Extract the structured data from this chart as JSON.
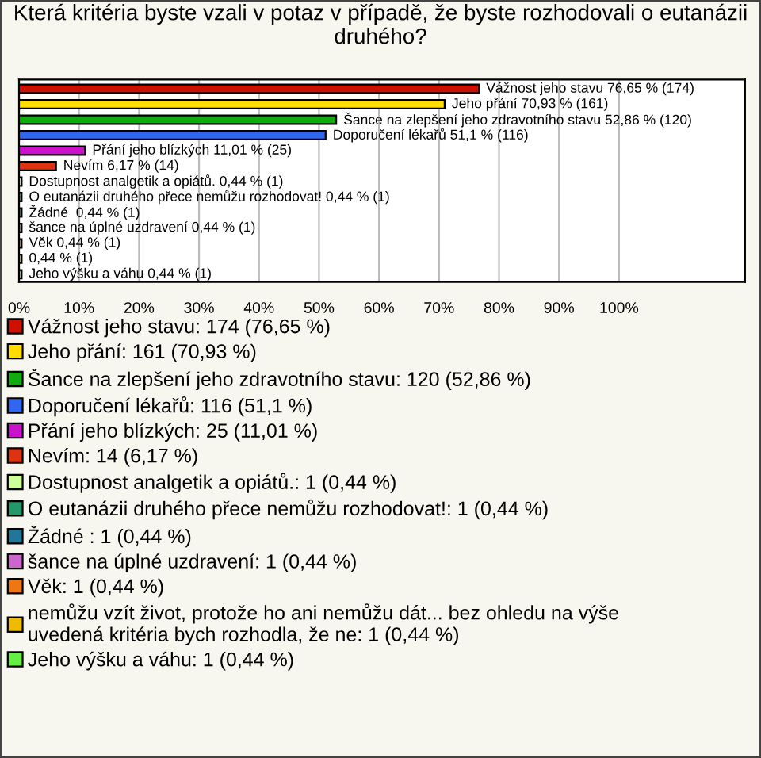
{
  "chart_data": {
    "type": "bar",
    "orientation": "horizontal",
    "title": "Která kritéria byste vzali v potaz v případě, že byste rozhodovali o eutanázii druhého?",
    "categories": [
      null,
      null,
      null,
      null,
      null,
      null,
      null,
      null,
      null,
      null,
      null,
      null,
      null
    ],
    "series": [
      {
        "name": "Vážnost jeho stavu: 174 (76,65 %)",
        "color": "#cc1100",
        "values": [
          76.65,
          null,
          null,
          null,
          null,
          null,
          null,
          null,
          null,
          null,
          null,
          null,
          null
        ]
      },
      {
        "name": "Jeho přání: 161 (70,93 %)",
        "color": "#ffdd00",
        "values": [
          null,
          70.93,
          null,
          null,
          null,
          null,
          null,
          null,
          null,
          null,
          null,
          null,
          null
        ]
      },
      {
        "name": "Šance na zlepšení jeho zdravotního stavu: 120 (52,86 %)",
        "color": "#11aa11",
        "values": [
          null,
          null,
          52.86,
          null,
          null,
          null,
          null,
          null,
          null,
          null,
          null,
          null,
          null
        ]
      },
      {
        "name": "Doporučení lékařů: 116 (51,1 %)",
        "color": "#3366ee",
        "values": [
          null,
          null,
          null,
          51.1,
          null,
          null,
          null,
          null,
          null,
          null,
          null,
          null,
          null
        ]
      },
      {
        "name": "Přání jeho blízkých: 25 (11,01 %)",
        "color": "#cc11cc",
        "values": [
          null,
          null,
          null,
          null,
          11.01,
          null,
          null,
          null,
          null,
          null,
          null,
          null,
          null
        ]
      },
      {
        "name": "Nevím: 14 (6,17 %)",
        "color": "#dd3311",
        "values": [
          null,
          null,
          null,
          null,
          null,
          6.17,
          null,
          null,
          null,
          null,
          null,
          null,
          null
        ]
      },
      {
        "name": "Dostupnost analgetik a opiátů.: 1 (0,44 %)",
        "color": "#ccff99",
        "values": [
          null,
          null,
          null,
          null,
          null,
          null,
          0.44,
          null,
          null,
          null,
          null,
          null,
          null
        ]
      },
      {
        "name": "O eutanázii druhého přece nemůžu rozhodovat!: 1 (0,44 %)",
        "color": "#229966",
        "values": [
          null,
          null,
          null,
          null,
          null,
          null,
          null,
          0.44,
          null,
          null,
          null,
          null,
          null
        ]
      },
      {
        "name": "Žádné : 1 (0,44 %)",
        "color": "#227799",
        "values": [
          null,
          null,
          null,
          null,
          null,
          null,
          null,
          null,
          0.44,
          null,
          null,
          null,
          null
        ]
      },
      {
        "name": "šance na úplné uzdravení: 1 (0,44 %)",
        "color": "#cc66cc",
        "values": [
          null,
          null,
          null,
          null,
          null,
          null,
          null,
          null,
          null,
          0.44,
          null,
          null,
          null
        ]
      },
      {
        "name": "Věk: 1 (0,44 %)",
        "color": "#ee7711",
        "values": [
          null,
          null,
          null,
          null,
          null,
          null,
          null,
          null,
          null,
          null,
          0.44,
          null,
          null
        ]
      },
      {
        "name": "nemůžu vzít život, protože ho ani nemůžu dát... bez ohledu na výše uvedená kritéria bych rozhodla, že ne: 1 (0,44 %)",
        "color": "#eebb00",
        "values": [
          null,
          null,
          null,
          null,
          null,
          null,
          null,
          null,
          null,
          null,
          null,
          0.44,
          null
        ]
      },
      {
        "name": "Jeho výšku a váhu: 1 (0,44 %)",
        "color": "#66ee44",
        "values": [
          null,
          null,
          null,
          null,
          null,
          null,
          null,
          null,
          null,
          null,
          null,
          null,
          0.44
        ]
      }
    ],
    "value_labels": [
      "Vážnost jeho stavu 76,65 % (174)",
      "Jeho přání 70,93 % (161)",
      "Šance na zlepšení jeho zdravotního stavu 52,86 % (120)",
      "Doporučení lékařů 51,1 % (116)",
      "Přání jeho blízkých 11,01 % (25)",
      "Nevím 6,17 % (14)",
      "Dostupnost analgetik a opiátů. 0,44 % (1)",
      "O eutanázii druhého přece nemůžu rozhodovat! 0,44 % (1)",
      "Žádné  0,44 % (1)",
      "šance na úplné uzdravení 0,44 % (1)",
      "Věk 0,44 % (1)",
      "0,44 % (1)",
      "Jeho výšku a váhu 0,44 % (1)"
    ],
    "xlim": [
      0,
      121
    ],
    "xticks": [
      {
        "value": 0,
        "label": "0%"
      },
      {
        "value": 10,
        "label": "10%"
      },
      {
        "value": 20,
        "label": "20%"
      },
      {
        "value": 30,
        "label": "30%"
      },
      {
        "value": 40,
        "label": "40%"
      },
      {
        "value": 50,
        "label": "50%"
      },
      {
        "value": 60,
        "label": "60%"
      },
      {
        "value": 70,
        "label": "70%"
      },
      {
        "value": 80,
        "label": "80%"
      },
      {
        "value": 90,
        "label": "90%"
      },
      {
        "value": 100,
        "label": "100%"
      }
    ],
    "grid": "x",
    "legend": "bottom"
  }
}
